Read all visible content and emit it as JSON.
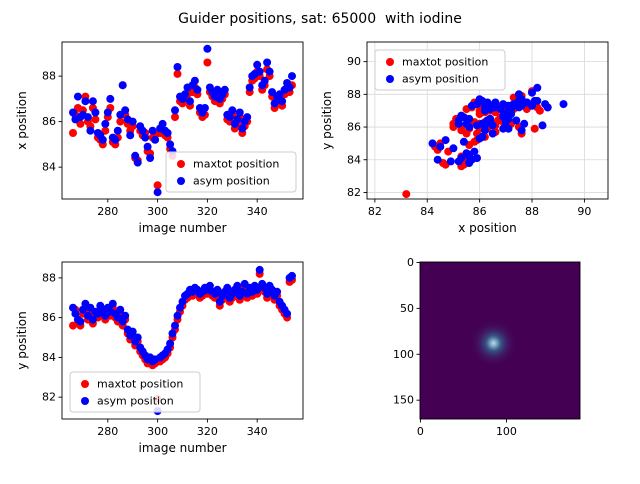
{
  "header": {
    "title": "Guider positions, sat: 65000  with iodine"
  },
  "colors": {
    "maxtot": "#ff0000",
    "asym": "#0000ff",
    "heatmap_bg": "#440154",
    "grid": "#d9d9d9",
    "axes": "#000000"
  },
  "chart_data": [
    {
      "id": "x-vs-image",
      "type": "scatter",
      "xlabel": "image number",
      "ylabel": "x position",
      "xlim": [
        261.6,
        358.4
      ],
      "ylim": [
        82.6,
        89.5
      ],
      "xticks": [
        280,
        300,
        320,
        340
      ],
      "yticks": [
        84,
        86,
        88
      ],
      "grid": false,
      "legend": {
        "position": "lower right",
        "entries": [
          "maxtot position",
          "asym position"
        ]
      },
      "x": [
        266,
        267,
        268,
        269,
        270,
        271,
        272,
        273,
        274,
        275,
        276,
        277,
        278,
        279,
        280,
        281,
        282,
        283,
        284,
        285,
        286,
        287,
        288,
        289,
        290,
        291,
        292,
        293,
        294,
        295,
        296,
        297,
        298,
        299,
        300,
        301,
        302,
        303,
        304,
        305,
        306,
        307,
        308,
        309,
        310,
        311,
        312,
        313,
        314,
        315,
        316,
        317,
        318,
        319,
        320,
        321,
        322,
        323,
        324,
        325,
        326,
        327,
        328,
        329,
        330,
        331,
        332,
        333,
        334,
        335,
        336,
        337,
        338,
        339,
        340,
        341,
        342,
        343,
        344,
        345,
        346,
        347,
        348,
        349,
        350,
        351,
        352,
        353,
        354
      ],
      "series": [
        {
          "name": "maxtot position",
          "color": "#ff0000",
          "values": [
            85.5,
            86.3,
            86.6,
            85.9,
            86.5,
            87.1,
            86.0,
            85.8,
            86.6,
            86.1,
            85.3,
            85.2,
            85.0,
            85.6,
            86.2,
            86.6,
            85.1,
            85.0,
            85.3,
            86.0,
            87.6,
            86.3,
            85.9,
            85.6,
            85.8,
            84.4,
            84.3,
            85.6,
            85.4,
            85.5,
            84.7,
            84.6,
            85.3,
            85.4,
            83.2,
            85.5,
            85.6,
            85.4,
            85.3,
            84.8,
            84.5,
            86.2,
            88.1,
            86.9,
            86.8,
            87.0,
            87.2,
            86.7,
            87.3,
            87.5,
            87.2,
            86.4,
            86.2,
            86.3,
            88.6,
            87.3,
            87.1,
            86.9,
            87.2,
            86.8,
            87.0,
            87.2,
            86.1,
            86.0,
            86.3,
            85.7,
            85.9,
            86.2,
            85.5,
            85.8,
            86.0,
            87.3,
            87.8,
            87.9,
            88.2,
            88.0,
            87.4,
            87.6,
            88.3,
            88.0,
            87.1,
            86.6,
            86.9,
            87.0,
            86.7,
            87.2,
            87.5,
            87.3,
            87.6
          ]
        },
        {
          "name": "asym position",
          "color": "#0000ff",
          "values": [
            86.4,
            86.1,
            87.1,
            86.2,
            86.3,
            86.9,
            86.2,
            85.6,
            86.9,
            86.4,
            85.5,
            85.4,
            85.2,
            85.9,
            86.4,
            87.0,
            85.3,
            85.2,
            85.6,
            86.3,
            87.6,
            86.5,
            86.1,
            85.4,
            86.0,
            84.5,
            84.2,
            85.8,
            85.6,
            85.3,
            84.9,
            84.4,
            85.6,
            85.2,
            82.9,
            85.7,
            85.9,
            85.6,
            85.5,
            85.0,
            84.7,
            86.5,
            88.4,
            87.1,
            87.0,
            87.2,
            87.5,
            86.9,
            87.6,
            87.8,
            87.4,
            86.6,
            86.4,
            86.6,
            89.2,
            87.5,
            87.3,
            87.1,
            87.4,
            87.0,
            87.2,
            87.4,
            86.3,
            86.2,
            86.5,
            85.9,
            86.1,
            86.4,
            85.7,
            86.0,
            86.2,
            87.5,
            88.0,
            88.1,
            88.5,
            88.2,
            87.6,
            87.8,
            88.6,
            88.2,
            87.3,
            86.8,
            87.1,
            87.2,
            86.9,
            87.4,
            87.7,
            87.5,
            88.0
          ]
        }
      ]
    },
    {
      "id": "y-vs-x",
      "type": "scatter",
      "xlabel": "x position",
      "ylabel": "y position",
      "xlim": [
        81.7,
        90.9
      ],
      "ylim": [
        81.6,
        91.2
      ],
      "xticks": [
        82,
        84,
        86,
        88,
        90
      ],
      "yticks": [
        82,
        84,
        86,
        88,
        90
      ],
      "grid": true,
      "legend": {
        "position": "upper left",
        "entries": [
          "maxtot position",
          "asym position"
        ]
      },
      "note": "point coordinates are (x,y) pairs taken from the x-vs-image and y-vs-image series",
      "x_source": "x-vs-image",
      "y_source": "y-vs-image"
    },
    {
      "id": "y-vs-image",
      "type": "scatter",
      "xlabel": "image number",
      "ylabel": "y position",
      "xlim": [
        261.6,
        358.4
      ],
      "ylim": [
        80.9,
        88.8
      ],
      "xticks": [
        280,
        300,
        320,
        340
      ],
      "yticks": [
        82,
        84,
        86,
        88
      ],
      "grid": false,
      "legend": {
        "position": "lower left",
        "entries": [
          "maxtot position",
          "asym position"
        ]
      },
      "x": [
        266,
        267,
        268,
        269,
        270,
        271,
        272,
        273,
        274,
        275,
        276,
        277,
        278,
        279,
        280,
        281,
        282,
        283,
        284,
        285,
        286,
        287,
        288,
        289,
        290,
        291,
        292,
        293,
        294,
        295,
        296,
        297,
        298,
        299,
        300,
        301,
        302,
        303,
        304,
        305,
        306,
        307,
        308,
        309,
        310,
        311,
        312,
        313,
        314,
        315,
        316,
        317,
        318,
        319,
        320,
        321,
        322,
        323,
        324,
        325,
        326,
        327,
        328,
        329,
        330,
        331,
        332,
        333,
        334,
        335,
        336,
        337,
        338,
        339,
        340,
        341,
        342,
        343,
        344,
        345,
        346,
        347,
        348,
        349,
        350,
        351,
        352,
        353,
        354
      ],
      "series": [
        {
          "name": "maxtot position",
          "color": "#ff0000",
          "values": [
            85.6,
            86.4,
            85.7,
            85.6,
            86.2,
            86.5,
            85.9,
            86.3,
            85.7,
            86.1,
            86.0,
            86.4,
            86.2,
            85.9,
            86.3,
            86.1,
            86.5,
            86.0,
            85.8,
            86.2,
            85.6,
            85.9,
            85.2,
            84.9,
            85.1,
            84.6,
            84.8,
            84.3,
            84.1,
            83.9,
            83.7,
            83.8,
            83.6,
            83.7,
            81.9,
            83.8,
            83.9,
            84.0,
            84.2,
            84.5,
            85.0,
            85.4,
            85.9,
            86.3,
            86.6,
            86.9,
            87.0,
            87.2,
            87.1,
            87.3,
            87.2,
            87.0,
            87.1,
            87.3,
            87.2,
            87.4,
            87.1,
            87.0,
            87.2,
            86.6,
            86.9,
            87.1,
            87.3,
            86.8,
            87.0,
            87.2,
            87.4,
            86.9,
            87.1,
            87.5,
            87.0,
            87.3,
            87.1,
            87.4,
            87.2,
            88.2,
            87.5,
            87.3,
            87.0,
            87.4,
            87.2,
            86.9,
            87.1,
            86.6,
            86.4,
            86.2,
            86.0,
            87.8,
            87.9
          ]
        },
        {
          "name": "asym position",
          "color": "#0000ff",
          "values": [
            86.5,
            86.2,
            85.9,
            85.8,
            86.4,
            86.7,
            86.1,
            86.5,
            85.9,
            86.3,
            86.2,
            86.6,
            86.4,
            86.1,
            86.5,
            86.3,
            86.7,
            86.2,
            86.0,
            86.4,
            85.8,
            86.1,
            85.4,
            85.1,
            85.3,
            84.8,
            85.0,
            84.5,
            84.3,
            84.1,
            83.9,
            84.0,
            83.8,
            83.9,
            81.3,
            84.0,
            84.1,
            84.2,
            84.4,
            84.7,
            85.2,
            85.6,
            86.1,
            86.5,
            86.8,
            87.1,
            87.2,
            87.4,
            87.3,
            87.5,
            87.4,
            87.2,
            87.3,
            87.5,
            87.4,
            87.6,
            87.3,
            87.2,
            87.4,
            86.8,
            87.1,
            87.3,
            87.5,
            87.0,
            87.2,
            87.4,
            87.6,
            87.1,
            87.3,
            87.7,
            87.2,
            87.5,
            87.3,
            87.6,
            87.4,
            88.4,
            87.7,
            87.5,
            87.2,
            87.6,
            87.4,
            87.1,
            87.3,
            86.8,
            86.6,
            86.4,
            86.2,
            88.0,
            88.1
          ]
        }
      ]
    },
    {
      "id": "guider-image",
      "type": "heatmap",
      "xticks": [
        0,
        100
      ],
      "yticks": [
        0,
        50,
        100,
        150
      ],
      "extent": {
        "x": [
          -0.5,
          185.5
        ],
        "y": [
          -0.5,
          170.5
        ]
      },
      "y_inverted": true,
      "background": "#440154",
      "blob": {
        "x": 85,
        "y": 88,
        "halo_radius": 24,
        "core_color": "#ccd3ea",
        "mid_color": "#31688e",
        "halo_color": "#440154"
      }
    }
  ]
}
